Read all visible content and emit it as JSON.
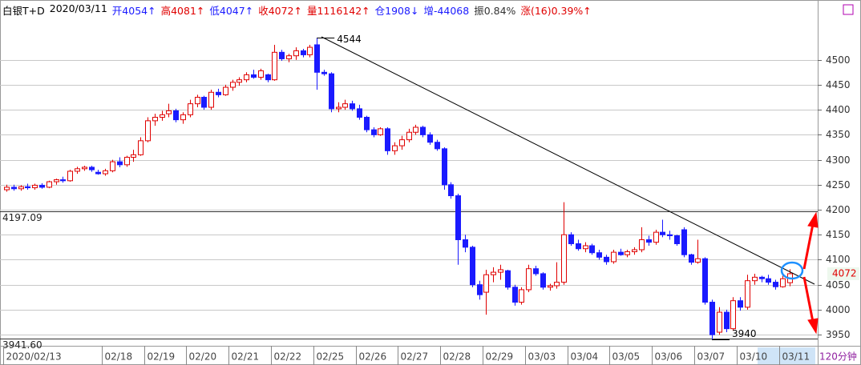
{
  "chart_data": {
    "type": "candlestick",
    "title": "白银T+D",
    "date": "2020/03/11",
    "header": [
      {
        "text": "开4054↑",
        "color": "#1a1aff"
      },
      {
        "text": "高4081↑",
        "color": "#e00000"
      },
      {
        "text": "低4047↑",
        "color": "#1a1aff"
      },
      {
        "text": "收4072↑",
        "color": "#e00000"
      },
      {
        "text": "量1116142↑",
        "color": "#e00000"
      },
      {
        "text": "仓1908↓",
        "color": "#1a1aff"
      },
      {
        "text": "增-44068",
        "color": "#1a1aff"
      },
      {
        "text": "振0.84%",
        "color": "#333333"
      },
      {
        "text": "涨(16)0.39%↑",
        "color": "#e00000"
      }
    ],
    "period": "120分钟",
    "categories": [
      "2020/02/13",
      null,
      null,
      null,
      null,
      null,
      null,
      null,
      null,
      null,
      null,
      null,
      null,
      null,
      "02/18",
      null,
      null,
      null,
      null,
      null,
      "02/19",
      null,
      null,
      null,
      null,
      null,
      "02/20",
      null,
      null,
      null,
      null,
      null,
      "02/21",
      null,
      null,
      null,
      null,
      null,
      "02/22",
      null,
      null,
      null,
      null,
      null,
      "02/25",
      null,
      null,
      null,
      null,
      null,
      "02/26",
      null,
      null,
      null,
      null,
      null,
      "02/27",
      null,
      null,
      null,
      null,
      null,
      "02/28",
      null,
      null,
      null,
      null,
      null,
      "02/29",
      null,
      null,
      null,
      null,
      null,
      "03/03",
      null,
      null,
      null,
      null,
      null,
      "03/04",
      null,
      null,
      null,
      null,
      null,
      "03/05",
      null,
      null,
      null,
      null,
      null,
      "03/06",
      null,
      null,
      null,
      null,
      null,
      "03/07",
      null,
      null,
      null,
      null,
      null,
      "03/10",
      null,
      null,
      null,
      null,
      null,
      "03/11",
      null
    ],
    "open": [
      4240,
      4245,
      4242,
      4246,
      4244,
      4249,
      4245,
      4256,
      4260,
      4258,
      4277,
      4282,
      4285,
      4275,
      4272,
      4278,
      4296,
      4290,
      4305,
      4310,
      4338,
      4378,
      4385,
      4392,
      4398,
      4380,
      4390,
      4412,
      4425,
      4405,
      4435,
      4430,
      4445,
      4455,
      4460,
      4470,
      4465,
      4470,
      4460,
      4515,
      4502,
      4508,
      4518,
      4510,
      4530,
      4475,
      4472,
      4402,
      4405,
      4412,
      4402,
      4385,
      4360,
      4350,
      4362,
      4318,
      4328,
      4340,
      4355,
      4365,
      4350,
      4335,
      4322,
      4250,
      4228,
      4140,
      4125,
      4050,
      4035,
      4070,
      4075,
      4078,
      4045,
      4015,
      4040,
      4082,
      4072,
      4045,
      4048,
      4055,
      4150,
      4132,
      4122,
      4128,
      4114,
      4105,
      4096,
      4115,
      4110,
      4116,
      4120,
      4140,
      4135,
      4155,
      4150,
      4148,
      4160,
      4110,
      4095,
      4102,
      4015,
      3955,
      3995,
      3962,
      4018,
      4005,
      4058,
      4065,
      4062,
      4055,
      4046,
      4054
    ],
    "high": [
      4250,
      4250,
      4249,
      4252,
      4252,
      4253,
      4258,
      4262,
      4266,
      4280,
      4286,
      4288,
      4288,
      4280,
      4282,
      4300,
      4305,
      4308,
      4320,
      4345,
      4385,
      4392,
      4398,
      4412,
      4402,
      4395,
      4420,
      4430,
      4428,
      4440,
      4442,
      4450,
      4460,
      4465,
      4475,
      4480,
      4482,
      4472,
      4530,
      4520,
      4512,
      4525,
      4522,
      4530,
      4544,
      4480,
      4475,
      4415,
      4420,
      4418,
      4410,
      4388,
      4365,
      4365,
      4365,
      4335,
      4348,
      4362,
      4370,
      4368,
      4355,
      4340,
      4325,
      4255,
      4232,
      4150,
      4128,
      4058,
      4080,
      4085,
      4090,
      4080,
      4050,
      4045,
      4090,
      4088,
      4075,
      4052,
      4095,
      4215,
      4155,
      4140,
      4135,
      4132,
      4120,
      4110,
      4120,
      4122,
      4120,
      4125,
      4165,
      4148,
      4160,
      4180,
      4158,
      4150,
      4165,
      4112,
      4140,
      4105,
      4020,
      4005,
      4000,
      4025,
      4025,
      4070,
      4072,
      4068,
      4070,
      4060,
      4068,
      4081
    ],
    "low": [
      4236,
      4238,
      4238,
      4240,
      4240,
      4242,
      4243,
      4250,
      4254,
      4256,
      4272,
      4278,
      4276,
      4270,
      4268,
      4275,
      4285,
      4286,
      4296,
      4308,
      4335,
      4368,
      4378,
      4385,
      4375,
      4372,
      4385,
      4405,
      4400,
      4400,
      4425,
      4428,
      4438,
      4448,
      4455,
      4462,
      4460,
      4455,
      4458,
      4498,
      4495,
      4500,
      4505,
      4505,
      4440,
      4468,
      4395,
      4395,
      4400,
      4398,
      4380,
      4355,
      4345,
      4348,
      4310,
      4310,
      4320,
      4335,
      4350,
      4345,
      4330,
      4318,
      4240,
      4222,
      4090,
      4115,
      4045,
      4020,
      3990,
      4055,
      4060,
      4040,
      4008,
      4010,
      4035,
      4068,
      4040,
      4038,
      4042,
      4050,
      4128,
      4118,
      4115,
      4110,
      4100,
      4090,
      4092,
      4108,
      4105,
      4110,
      4115,
      4128,
      4130,
      4145,
      4140,
      4128,
      4105,
      4090,
      4092,
      4010,
      3940,
      3950,
      3955,
      3958,
      3998,
      4000,
      4050,
      4055,
      4050,
      4040,
      4044,
      4047
    ],
    "close": [
      4245,
      4242,
      4246,
      4244,
      4249,
      4245,
      4256,
      4260,
      4258,
      4277,
      4282,
      4285,
      4280,
      4272,
      4278,
      4296,
      4290,
      4305,
      4310,
      4338,
      4378,
      4385,
      4390,
      4398,
      4380,
      4390,
      4412,
      4425,
      4405,
      4435,
      4430,
      4445,
      4455,
      4460,
      4470,
      4465,
      4478,
      4460,
      4515,
      4502,
      4508,
      4518,
      4510,
      4525,
      4475,
      4472,
      4402,
      4405,
      4412,
      4402,
      4385,
      4360,
      4350,
      4362,
      4318,
      4328,
      4340,
      4355,
      4365,
      4350,
      4335,
      4322,
      4250,
      4228,
      4140,
      4125,
      4050,
      4030,
      4070,
      4075,
      4080,
      4045,
      4015,
      4040,
      4082,
      4072,
      4045,
      4048,
      4055,
      4150,
      4132,
      4122,
      4128,
      4114,
      4105,
      4096,
      4115,
      4110,
      4116,
      4120,
      4140,
      4135,
      4155,
      4150,
      4148,
      4132,
      4110,
      4095,
      4102,
      4015,
      3950,
      3995,
      3962,
      4018,
      4005,
      4058,
      4065,
      4062,
      4055,
      4046,
      4062,
      4072
    ],
    "up_color": "#e00000",
    "down_color": "#1a1aff",
    "ylim": [
      3931,
      4610
    ],
    "yticks": [
      3950,
      4000,
      4050,
      4100,
      4150,
      4200,
      4250,
      4300,
      4350,
      4400,
      4450,
      4500
    ],
    "grid": true,
    "hlines": [
      4197.09,
      {
        "value": 3941.6,
        "label": "3941.60"
      }
    ],
    "annotations": [
      4544,
      3940
    ],
    "last_price": 4072
  }
}
